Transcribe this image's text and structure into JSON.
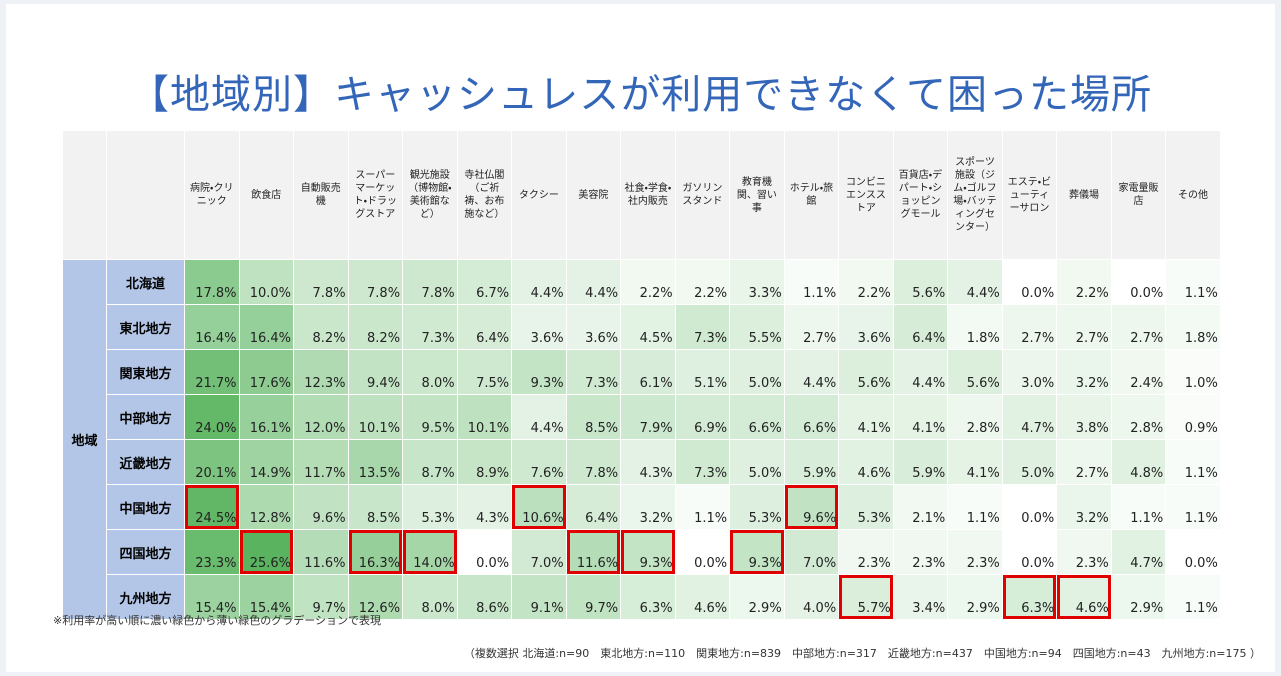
{
  "title": "【地域別】キャッシュレスが利用できなくて困った場所",
  "table": {
    "group_label": "地域",
    "columns": [
      "病院・クリニック",
      "飲食店",
      "自動販売機",
      "スーパーマーケット・ドラッグストア",
      "観光施設（博物館・美術館など）",
      "寺社仏閣（ご祈祷、お布施など）",
      "タクシー",
      "美容院",
      "社食・学食・社内販売",
      "ガソリンスタンド",
      "教育機関、習い事",
      "ホテル・旅館",
      "コンビニエンスストア",
      "百貨店・デパート・ショッピングモール",
      "スポーツ施設（ジム・ゴルフ場・バッティングセンター）",
      "エステ・ビューティーサロン",
      "葬儀場",
      "家電量販店",
      "その他"
    ],
    "rows": [
      {
        "label": "北海道",
        "cells": [
          "17.8%",
          "10.0%",
          "7.8%",
          "7.8%",
          "7.8%",
          "6.7%",
          "4.4%",
          "4.4%",
          "2.2%",
          "2.2%",
          "3.3%",
          "1.1%",
          "2.2%",
          "5.6%",
          "4.4%",
          "0.0%",
          "2.2%",
          "0.0%",
          "1.1%"
        ]
      },
      {
        "label": "東北地方",
        "cells": [
          "16.4%",
          "16.4%",
          "8.2%",
          "8.2%",
          "7.3%",
          "6.4%",
          "3.6%",
          "3.6%",
          "4.5%",
          "7.3%",
          "5.5%",
          "2.7%",
          "3.6%",
          "6.4%",
          "1.8%",
          "2.7%",
          "2.7%",
          "2.7%",
          "1.8%"
        ]
      },
      {
        "label": "関東地方",
        "cells": [
          "21.7%",
          "17.6%",
          "12.3%",
          "9.4%",
          "8.0%",
          "7.5%",
          "9.3%",
          "7.3%",
          "6.1%",
          "5.1%",
          "5.0%",
          "4.4%",
          "5.6%",
          "4.4%",
          "5.6%",
          "3.0%",
          "3.2%",
          "2.4%",
          "1.0%"
        ]
      },
      {
        "label": "中部地方",
        "cells": [
          "24.0%",
          "16.1%",
          "12.0%",
          "10.1%",
          "9.5%",
          "10.1%",
          "4.4%",
          "8.5%",
          "7.9%",
          "6.9%",
          "6.6%",
          "6.6%",
          "4.1%",
          "4.1%",
          "2.8%",
          "4.7%",
          "3.8%",
          "2.8%",
          "0.9%"
        ]
      },
      {
        "label": "近畿地方",
        "cells": [
          "20.1%",
          "14.9%",
          "11.7%",
          "13.5%",
          "8.7%",
          "8.9%",
          "7.6%",
          "7.8%",
          "4.3%",
          "7.3%",
          "5.0%",
          "5.9%",
          "4.6%",
          "5.9%",
          "4.1%",
          "5.0%",
          "2.7%",
          "4.8%",
          "1.1%"
        ]
      },
      {
        "label": "中国地方",
        "cells": [
          "24.5%",
          "12.8%",
          "9.6%",
          "8.5%",
          "5.3%",
          "4.3%",
          "10.6%",
          "6.4%",
          "3.2%",
          "1.1%",
          "5.3%",
          "9.6%",
          "5.3%",
          "2.1%",
          "1.1%",
          "0.0%",
          "3.2%",
          "1.1%",
          "1.1%"
        ],
        "highlighted": [
          0,
          6,
          11
        ]
      },
      {
        "label": "四国地方",
        "cells": [
          "23.3%",
          "25.6%",
          "11.6%",
          "16.3%",
          "14.0%",
          "0.0%",
          "7.0%",
          "11.6%",
          "9.3%",
          "0.0%",
          "9.3%",
          "7.0%",
          "2.3%",
          "2.3%",
          "2.3%",
          "0.0%",
          "2.3%",
          "4.7%",
          "0.0%"
        ],
        "highlighted": [
          1,
          3,
          4,
          7,
          8,
          10
        ]
      },
      {
        "label": "九州地方",
        "cells": [
          "15.4%",
          "15.4%",
          "9.7%",
          "12.6%",
          "8.0%",
          "8.6%",
          "9.1%",
          "9.7%",
          "6.3%",
          "4.6%",
          "2.9%",
          "4.0%",
          "5.7%",
          "3.4%",
          "2.9%",
          "6.3%",
          "4.6%",
          "2.9%",
          "1.1%"
        ],
        "highlighted": [
          12,
          15,
          16
        ]
      }
    ]
  },
  "footnote": "※利用率が高い順に濃い緑色から薄い緑色のグラデーションで表現",
  "sample_note": "（複数選択 北海道:n=90　東北地方:n=110　関東地方:n=839　中部地方:n=317　近畿地方:n=437　中国地方:n=94　四国地方:n=43　九州地方:n=175 ）"
}
